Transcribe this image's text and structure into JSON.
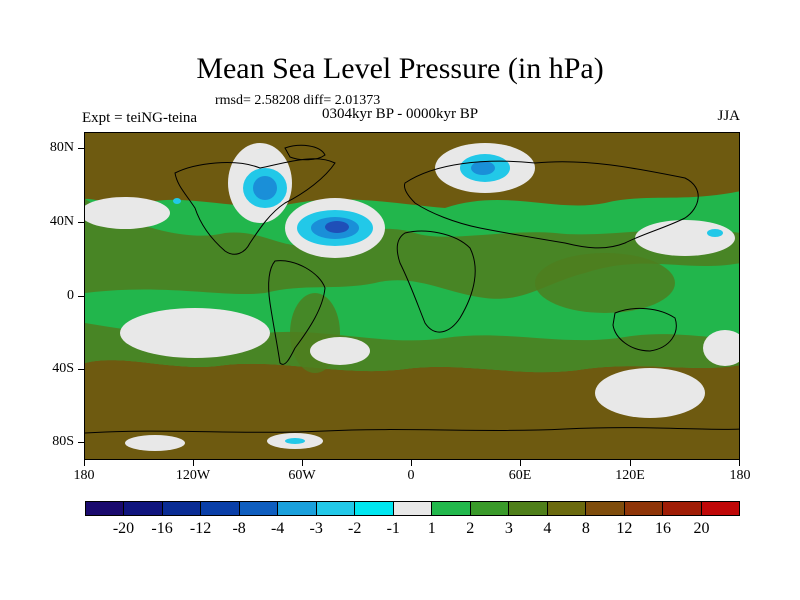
{
  "header": {
    "title": "Mean Sea Level Pressure (in hPa)",
    "stats": "rmsd= 2.58208 diff= 2.01373",
    "subtitle": "0304kyr BP - 0000kyr BP",
    "experiment": "Expt = teiNG-teina",
    "season": "JJA"
  },
  "axes": {
    "latitude_labels": [
      "80N",
      "40N",
      "0",
      "40S",
      "80S"
    ],
    "longitude_labels": [
      "180",
      "120W",
      "60W",
      "0",
      "60E",
      "120E",
      "180"
    ]
  },
  "colorbar": {
    "colors": [
      "#1a0a6e",
      "#10157e",
      "#0a2c94",
      "#0a3fa8",
      "#0f5ebf",
      "#1aa0dc",
      "#22c8e8",
      "#00e6f0",
      "#e8e8e8",
      "#22b84c",
      "#3a9a2a",
      "#4f7f1a",
      "#6b6a0e",
      "#7f4d0c",
      "#8f3508",
      "#a01d06",
      "#c00808"
    ],
    "labels": [
      "-20",
      "-16",
      "-12",
      "-8",
      "-4",
      "-3",
      "-2",
      "-1",
      "1",
      "2",
      "3",
      "4",
      "8",
      "12",
      "16",
      "20"
    ]
  },
  "map_colors": {
    "brown": "#6e5a10",
    "olive": "#4f7d1e",
    "green": "#22b64c",
    "white": "#e8e8e8",
    "light_blue": "#22c8e8",
    "blue": "#1a8fd8",
    "dark_blue": "#1f4fb8"
  }
}
